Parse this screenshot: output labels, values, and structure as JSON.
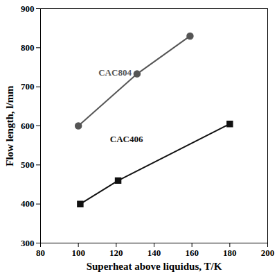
{
  "chart_data": {
    "type": "line",
    "x_label": "Superheat above liquidus, T/K",
    "y_label": "Flow length, l/mm",
    "series": [
      {
        "name": "CAC804",
        "color": "#555555",
        "marker": "circle",
        "x": [
          100,
          131,
          159
        ],
        "values": [
          600,
          733,
          830
        ]
      },
      {
        "name": "CAC406",
        "color": "#111111",
        "marker": "square",
        "x": [
          101,
          121,
          180
        ],
        "values": [
          400,
          460,
          605
        ]
      }
    ],
    "xlim": [
      80,
      200
    ],
    "xticks": [
      80,
      100,
      120,
      140,
      160,
      180,
      200
    ],
    "ylim": [
      300,
      900
    ],
    "yticks": [
      300,
      400,
      500,
      600,
      700,
      800,
      900
    ],
    "grid": false
  }
}
